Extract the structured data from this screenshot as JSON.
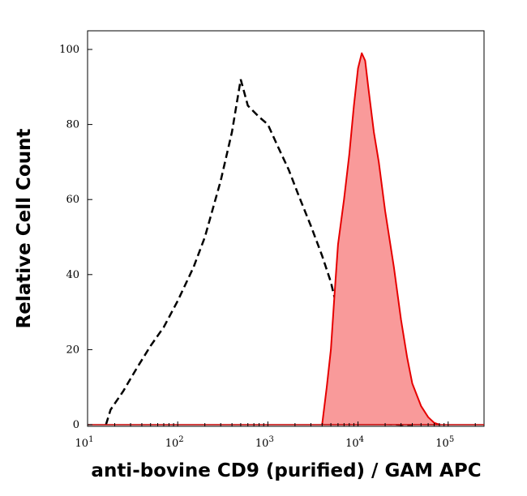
{
  "chart_data": {
    "type": "area",
    "xlabel": "anti-bovine CD9 (purified) / GAM APC",
    "ylabel": "Relative Cell Count",
    "x_scale": "log",
    "xlim": [
      10,
      250000
    ],
    "ylim": [
      0,
      100
    ],
    "y_ticks": [
      0,
      20,
      40,
      60,
      80,
      100
    ],
    "x_ticks": [
      {
        "value": 10,
        "base": "10",
        "exp": "1"
      },
      {
        "value": 100,
        "base": "10",
        "exp": "2"
      },
      {
        "value": 1000,
        "base": "10",
        "exp": "3"
      },
      {
        "value": 10000,
        "base": "10",
        "exp": "4"
      },
      {
        "value": 100000,
        "base": "10",
        "exp": "5"
      }
    ],
    "grid": false,
    "legend": "none",
    "series": [
      {
        "style": "dashed",
        "color": "#000000",
        "x": [
          16,
          18,
          25,
          35,
          50,
          70,
          100,
          150,
          200,
          300,
          400,
          500,
          600,
          800,
          1000,
          1300,
          1700,
          2200,
          3000,
          4000,
          5000,
          6000,
          7000,
          8000,
          9000,
          10000,
          12000,
          14000,
          16000,
          20000,
          30000,
          40000
        ],
        "y": [
          0,
          4,
          9,
          15,
          21,
          26,
          33,
          42,
          50,
          65,
          78,
          92,
          85,
          82,
          80,
          74,
          68,
          61,
          53,
          45,
          38,
          30,
          20,
          13,
          8,
          5,
          3,
          1,
          0.5,
          0.2,
          0,
          0
        ]
      },
      {
        "style": "filled",
        "color": "#e60000",
        "fill": "#f99a9a",
        "x": [
          4000,
          4500,
          5000,
          5500,
          6000,
          7000,
          8000,
          9000,
          10000,
          11000,
          12000,
          13000,
          15000,
          17000,
          20000,
          25000,
          30000,
          35000,
          40000,
          50000,
          60000,
          70000,
          80000
        ],
        "y": [
          0,
          10,
          20,
          35,
          48,
          60,
          72,
          85,
          95,
          99,
          97,
          90,
          78,
          70,
          57,
          42,
          28,
          18,
          11,
          5,
          2,
          0.5,
          0
        ]
      }
    ]
  }
}
